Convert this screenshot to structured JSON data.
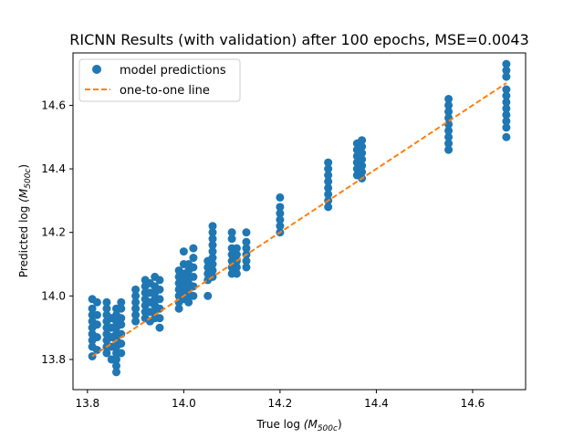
{
  "chart_data": {
    "type": "scatter",
    "title": "RICNN Results (with validation) after 100 epochs, MSE=0.0043",
    "xlabel": "True log",
    "xlabel_math": "(M500c)",
    "ylabel": "Predicted log",
    "ylabel_math": "(M500c)",
    "xlim": [
      13.77,
      14.71
    ],
    "ylim": [
      13.705,
      14.765
    ],
    "xticks": [
      13.8,
      14.0,
      14.2,
      14.4,
      14.6
    ],
    "xtick_labels": [
      "13.8",
      "14.0",
      "14.2",
      "14.4",
      "14.6"
    ],
    "yticks": [
      13.8,
      14.0,
      14.2,
      14.4,
      14.6
    ],
    "ytick_labels": [
      "13.8",
      "14.0",
      "14.2",
      "14.4",
      "14.6"
    ],
    "grid": false,
    "legend_position": "top-left",
    "series": [
      {
        "name": "model predictions",
        "kind": "scatter",
        "color": "#1f77b4",
        "points": [
          [
            13.81,
            13.81
          ],
          [
            13.81,
            13.84
          ],
          [
            13.81,
            13.86
          ],
          [
            13.81,
            13.88
          ],
          [
            13.81,
            13.9
          ],
          [
            13.81,
            13.92
          ],
          [
            13.81,
            13.94
          ],
          [
            13.81,
            13.96
          ],
          [
            13.81,
            13.99
          ],
          [
            13.82,
            13.83
          ],
          [
            13.82,
            13.87
          ],
          [
            13.82,
            13.91
          ],
          [
            13.82,
            13.94
          ],
          [
            13.82,
            13.98
          ],
          [
            13.84,
            13.82
          ],
          [
            13.84,
            13.84
          ],
          [
            13.84,
            13.86
          ],
          [
            13.84,
            13.88
          ],
          [
            13.84,
            13.9
          ],
          [
            13.84,
            13.92
          ],
          [
            13.84,
            13.94
          ],
          [
            13.84,
            13.96
          ],
          [
            13.84,
            13.98
          ],
          [
            13.85,
            13.8
          ],
          [
            13.85,
            13.84
          ],
          [
            13.85,
            13.87
          ],
          [
            13.85,
            13.9
          ],
          [
            13.85,
            13.93
          ],
          [
            13.86,
            13.76
          ],
          [
            13.86,
            13.78
          ],
          [
            13.86,
            13.8
          ],
          [
            13.86,
            13.82
          ],
          [
            13.86,
            13.84
          ],
          [
            13.86,
            13.86
          ],
          [
            13.86,
            13.88
          ],
          [
            13.86,
            13.9
          ],
          [
            13.86,
            13.92
          ],
          [
            13.86,
            13.94
          ],
          [
            13.86,
            13.96
          ],
          [
            13.87,
            13.82
          ],
          [
            13.87,
            13.85
          ],
          [
            13.87,
            13.88
          ],
          [
            13.87,
            13.91
          ],
          [
            13.87,
            13.93
          ],
          [
            13.87,
            13.96
          ],
          [
            13.87,
            13.98
          ],
          [
            13.9,
            13.92
          ],
          [
            13.9,
            13.94
          ],
          [
            13.9,
            13.96
          ],
          [
            13.9,
            13.98
          ],
          [
            13.9,
            14.0
          ],
          [
            13.9,
            14.02
          ],
          [
            13.92,
            13.93
          ],
          [
            13.92,
            13.95
          ],
          [
            13.92,
            13.97
          ],
          [
            13.92,
            13.99
          ],
          [
            13.92,
            14.01
          ],
          [
            13.92,
            14.03
          ],
          [
            13.92,
            14.05
          ],
          [
            13.93,
            13.92
          ],
          [
            13.93,
            13.95
          ],
          [
            13.93,
            13.98
          ],
          [
            13.93,
            14.01
          ],
          [
            13.93,
            14.04
          ],
          [
            13.94,
            13.93
          ],
          [
            13.94,
            13.95
          ],
          [
            13.94,
            13.97
          ],
          [
            13.94,
            13.99
          ],
          [
            13.94,
            14.01
          ],
          [
            13.94,
            14.03
          ],
          [
            13.94,
            14.06
          ],
          [
            13.95,
            13.9
          ],
          [
            13.95,
            13.93
          ],
          [
            13.95,
            13.96
          ],
          [
            13.95,
            13.99
          ],
          [
            13.95,
            14.02
          ],
          [
            13.95,
            14.05
          ],
          [
            13.99,
            13.96
          ],
          [
            13.99,
            13.98
          ],
          [
            13.99,
            14.0
          ],
          [
            13.99,
            14.02
          ],
          [
            13.99,
            14.04
          ],
          [
            13.99,
            14.06
          ],
          [
            13.99,
            14.08
          ],
          [
            14.0,
            13.99
          ],
          [
            14.0,
            14.01
          ],
          [
            14.0,
            14.03
          ],
          [
            14.0,
            14.05
          ],
          [
            14.0,
            14.07
          ],
          [
            14.0,
            14.1
          ],
          [
            14.0,
            14.14
          ],
          [
            14.01,
            13.98
          ],
          [
            14.01,
            14.0
          ],
          [
            14.01,
            14.02
          ],
          [
            14.01,
            14.04
          ],
          [
            14.01,
            14.06
          ],
          [
            14.01,
            14.08
          ],
          [
            14.01,
            14.1
          ],
          [
            14.02,
            14.0
          ],
          [
            14.02,
            14.03
          ],
          [
            14.02,
            14.06
          ],
          [
            14.02,
            14.09
          ],
          [
            14.02,
            14.12
          ],
          [
            14.02,
            14.15
          ],
          [
            14.05,
            14.0
          ],
          [
            14.05,
            14.05
          ],
          [
            14.05,
            14.07
          ],
          [
            14.05,
            14.09
          ],
          [
            14.05,
            14.11
          ],
          [
            14.06,
            14.06
          ],
          [
            14.06,
            14.08
          ],
          [
            14.06,
            14.1
          ],
          [
            14.06,
            14.12
          ],
          [
            14.06,
            14.14
          ],
          [
            14.06,
            14.16
          ],
          [
            14.06,
            14.18
          ],
          [
            14.06,
            14.2
          ],
          [
            14.06,
            14.22
          ],
          [
            14.1,
            14.07
          ],
          [
            14.1,
            14.09
          ],
          [
            14.1,
            14.11
          ],
          [
            14.1,
            14.13
          ],
          [
            14.1,
            14.15
          ],
          [
            14.1,
            14.18
          ],
          [
            14.1,
            14.2
          ],
          [
            14.11,
            14.07
          ],
          [
            14.11,
            14.09
          ],
          [
            14.11,
            14.11
          ],
          [
            14.11,
            14.13
          ],
          [
            14.11,
            14.15
          ],
          [
            14.13,
            14.09
          ],
          [
            14.13,
            14.11
          ],
          [
            14.13,
            14.13
          ],
          [
            14.13,
            14.15
          ],
          [
            14.13,
            14.17
          ],
          [
            14.13,
            14.2
          ],
          [
            14.2,
            14.2
          ],
          [
            14.2,
            14.22
          ],
          [
            14.2,
            14.24
          ],
          [
            14.2,
            14.26
          ],
          [
            14.2,
            14.28
          ],
          [
            14.2,
            14.31
          ],
          [
            14.3,
            14.28
          ],
          [
            14.3,
            14.3
          ],
          [
            14.3,
            14.32
          ],
          [
            14.3,
            14.34
          ],
          [
            14.3,
            14.36
          ],
          [
            14.3,
            14.38
          ],
          [
            14.3,
            14.4
          ],
          [
            14.3,
            14.42
          ],
          [
            14.36,
            14.38
          ],
          [
            14.36,
            14.4
          ],
          [
            14.36,
            14.42
          ],
          [
            14.36,
            14.44
          ],
          [
            14.36,
            14.46
          ],
          [
            14.36,
            14.48
          ],
          [
            14.37,
            14.37
          ],
          [
            14.37,
            14.39
          ],
          [
            14.37,
            14.41
          ],
          [
            14.37,
            14.43
          ],
          [
            14.37,
            14.45
          ],
          [
            14.37,
            14.47
          ],
          [
            14.37,
            14.49
          ],
          [
            14.55,
            14.46
          ],
          [
            14.55,
            14.48
          ],
          [
            14.55,
            14.5
          ],
          [
            14.55,
            14.52
          ],
          [
            14.55,
            14.54
          ],
          [
            14.55,
            14.56
          ],
          [
            14.55,
            14.58
          ],
          [
            14.55,
            14.6
          ],
          [
            14.55,
            14.62
          ],
          [
            14.67,
            14.5
          ],
          [
            14.67,
            14.53
          ],
          [
            14.67,
            14.55
          ],
          [
            14.67,
            14.57
          ],
          [
            14.67,
            14.59
          ],
          [
            14.67,
            14.61
          ],
          [
            14.67,
            14.63
          ],
          [
            14.67,
            14.65
          ],
          [
            14.67,
            14.69
          ],
          [
            14.67,
            14.71
          ],
          [
            14.67,
            14.73
          ]
        ]
      },
      {
        "name": "one-to-one line",
        "kind": "line",
        "style": "dashed",
        "color": "#ff7f0e",
        "x": [
          13.81,
          14.67
        ],
        "y": [
          13.81,
          14.67
        ]
      }
    ]
  }
}
